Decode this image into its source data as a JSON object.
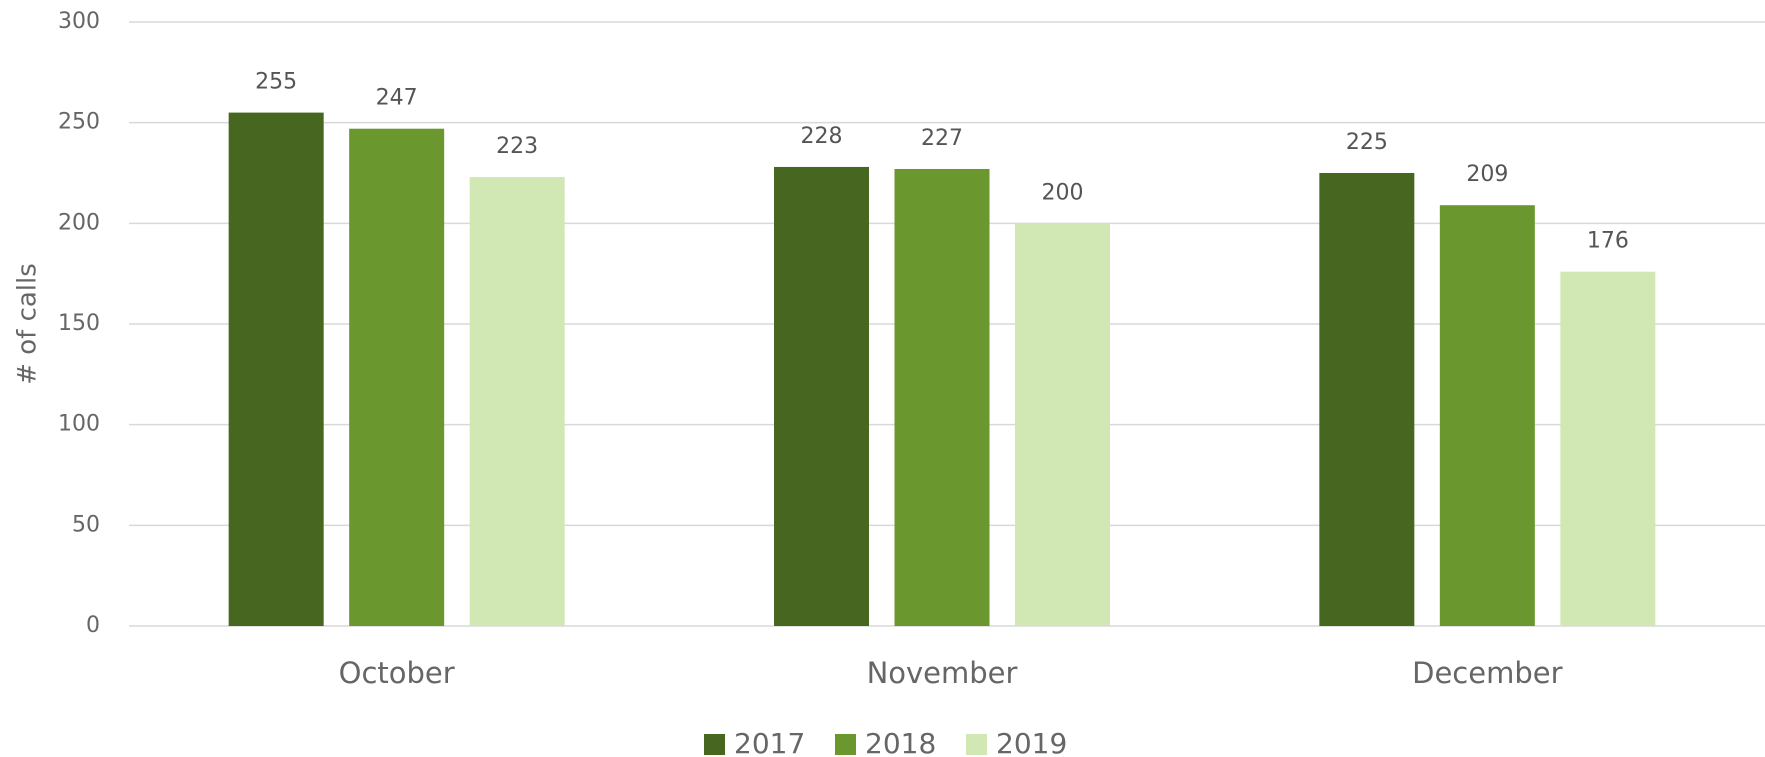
{
  "chart_data": {
    "type": "bar",
    "y_label": "# of calls",
    "categories": [
      "October",
      "November",
      "December"
    ],
    "series": [
      {
        "name": "2017",
        "color": "#47661f",
        "values": [
          255,
          228,
          225
        ]
      },
      {
        "name": "2018",
        "color": "#6a972e",
        "values": [
          247,
          227,
          209
        ]
      },
      {
        "name": "2019",
        "color": "#d2e8b4",
        "values": [
          223,
          200,
          176
        ]
      }
    ],
    "ylim": [
      0,
      300
    ],
    "yticks": [
      0,
      50,
      100,
      150,
      200,
      250,
      300
    ],
    "grid": true,
    "legend": "bottom"
  }
}
